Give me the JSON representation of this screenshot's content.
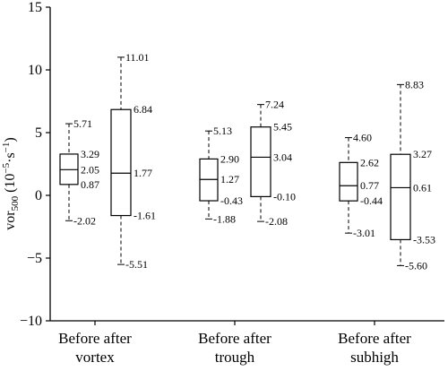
{
  "chart_data": {
    "type": "box",
    "ylabel_main": "vor",
    "ylabel_sub": "500",
    "ylabel_unit": " (10",
    "ylabel_exp": "−5",
    "ylabel_unit2": "·s",
    "ylabel_exp2": "−1",
    "ylabel_close": ")",
    "ylim": [
      -10,
      15
    ],
    "yticks": [
      -10,
      -5,
      0,
      5,
      10,
      15
    ],
    "ytick_labels": [
      "−10",
      "−5",
      "0",
      "5",
      "10",
      "15"
    ],
    "grid": false,
    "groups": [
      {
        "label_lines": [
          "Before after",
          "vortex"
        ],
        "boxes": [
          {
            "min": -2.02,
            "q1": 0.87,
            "median": 2.05,
            "q3": 3.29,
            "max": 5.71,
            "labels": {
              "max": "5.71",
              "q3": "3.29",
              "median": "2.05",
              "q1": "0.87",
              "min": "-2.02"
            }
          },
          {
            "min": -5.51,
            "q1": -1.61,
            "median": 1.77,
            "q3": 6.84,
            "max": 11.01,
            "labels": {
              "max": "11.01",
              "q3": "6.84",
              "median": "1.77",
              "q1": "-1.61",
              "min": "-5.51"
            }
          }
        ]
      },
      {
        "label_lines": [
          "Before after",
          "trough"
        ],
        "boxes": [
          {
            "min": -1.88,
            "q1": -0.43,
            "median": 1.27,
            "q3": 2.9,
            "max": 5.13,
            "labels": {
              "max": "5.13",
              "q3": "2.90",
              "median": "1.27",
              "q1": "-0.43",
              "min": "-1.88"
            }
          },
          {
            "min": -2.08,
            "q1": -0.1,
            "median": 3.04,
            "q3": 5.45,
            "max": 7.24,
            "labels": {
              "max": "7.24",
              "q3": "5.45",
              "median": "3.04",
              "q1": "-0.10",
              "min": "-2.08"
            }
          }
        ]
      },
      {
        "label_lines": [
          "Before after",
          "subhigh"
        ],
        "boxes": [
          {
            "min": -3.01,
            "q1": -0.44,
            "median": 0.77,
            "q3": 2.62,
            "max": 4.6,
            "labels": {
              "max": "4.60",
              "q3": "2.62",
              "median": "0.77",
              "q1": "-0.44",
              "min": "-3.01"
            }
          },
          {
            "min": -5.6,
            "q1": -3.53,
            "median": 0.61,
            "q3": 3.27,
            "max": 8.83,
            "labels": {
              "max": "8.83",
              "q3": "3.27",
              "median": "0.61",
              "q1": "-3.53",
              "min": "-5.60"
            }
          }
        ]
      }
    ]
  }
}
